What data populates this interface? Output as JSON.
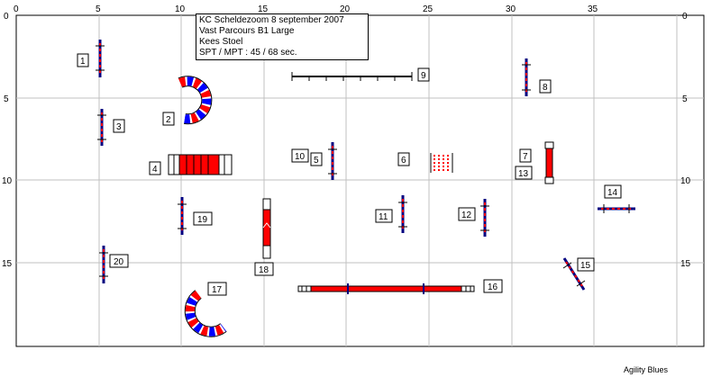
{
  "info": {
    "line1": "KC Scheldezoom 8 september 2007",
    "line2": "Vast Parcours B1 Large",
    "line3": "Kees Stoel",
    "line4": "SPT / MPT : 45 / 68 sec."
  },
  "credit": "Agility Blues",
  "axes": {
    "x_ticks": [
      "0",
      "5",
      "10",
      "15",
      "20",
      "25",
      "30",
      "35"
    ],
    "y_ticks_left": [
      "0",
      "5",
      "10",
      "15"
    ],
    "y_ticks_right": [
      "0",
      "5",
      "10",
      "15"
    ]
  },
  "colors": {
    "grid": "#c0c0c0",
    "red": "#ff0000",
    "blue": "#0000ff",
    "dark": "#000080"
  },
  "labels": [
    "1",
    "2",
    "3",
    "4",
    "5",
    "6",
    "7",
    "8",
    "9",
    "10",
    "11",
    "12",
    "13",
    "14",
    "15",
    "16",
    "17",
    "18",
    "19",
    "20"
  ]
}
